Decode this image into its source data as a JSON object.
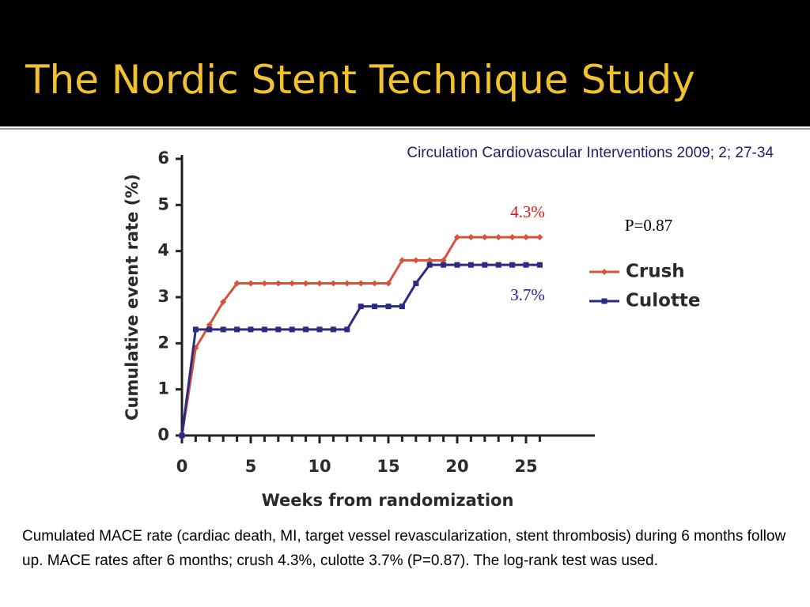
{
  "header": {
    "title": "The Nordic Stent Technique Study"
  },
  "citation": "Circulation Cardiovascular Interventions 2009; 2; 27-34",
  "caption": "Cumulated MACE rate (cardiac death, MI, target vessel revascularization, stent thrombosis) during 6 months follow up. MACE rates after 6 months; crush 4.3%, culotte 3.7% (P=0.87). The log-rank test was used.",
  "chart_data": {
    "type": "line",
    "x_label": "Weeks from randomization",
    "y_label": "Cumulative event rate (%)",
    "x": [
      0,
      1,
      2,
      3,
      4,
      5,
      6,
      7,
      8,
      9,
      10,
      11,
      12,
      13,
      14,
      15,
      16,
      17,
      18,
      19,
      20,
      21,
      22,
      23,
      24,
      25,
      26
    ],
    "series": [
      {
        "name": "Crush",
        "color": "#d5533b",
        "marker": "diamond",
        "values": [
          0,
          1.9,
          2.4,
          2.9,
          3.3,
          3.3,
          3.3,
          3.3,
          3.3,
          3.3,
          3.3,
          3.3,
          3.3,
          3.3,
          3.3,
          3.3,
          3.8,
          3.8,
          3.8,
          3.8,
          4.3,
          4.3,
          4.3,
          4.3,
          4.3,
          4.3,
          4.3
        ]
      },
      {
        "name": "Culotte",
        "color": "#2d2a86",
        "marker": "square",
        "values": [
          0,
          2.3,
          2.3,
          2.3,
          2.3,
          2.3,
          2.3,
          2.3,
          2.3,
          2.3,
          2.3,
          2.3,
          2.3,
          2.8,
          2.8,
          2.8,
          2.8,
          3.3,
          3.7,
          3.7,
          3.7,
          3.7,
          3.7,
          3.7,
          3.7,
          3.7,
          3.7
        ]
      }
    ],
    "xlim": [
      0,
      30
    ],
    "xticks": [
      0,
      5,
      10,
      15,
      20,
      25
    ],
    "ylim": [
      0,
      6
    ],
    "yticks": [
      0,
      1,
      2,
      3,
      4,
      5,
      6
    ],
    "legend": "right",
    "annotations": [
      {
        "text": "4.3%",
        "color": "#e01010"
      },
      {
        "text": "3.7%",
        "color": "#1a1aa0"
      },
      {
        "text": "P=0.87",
        "color": "#000000"
      }
    ]
  }
}
